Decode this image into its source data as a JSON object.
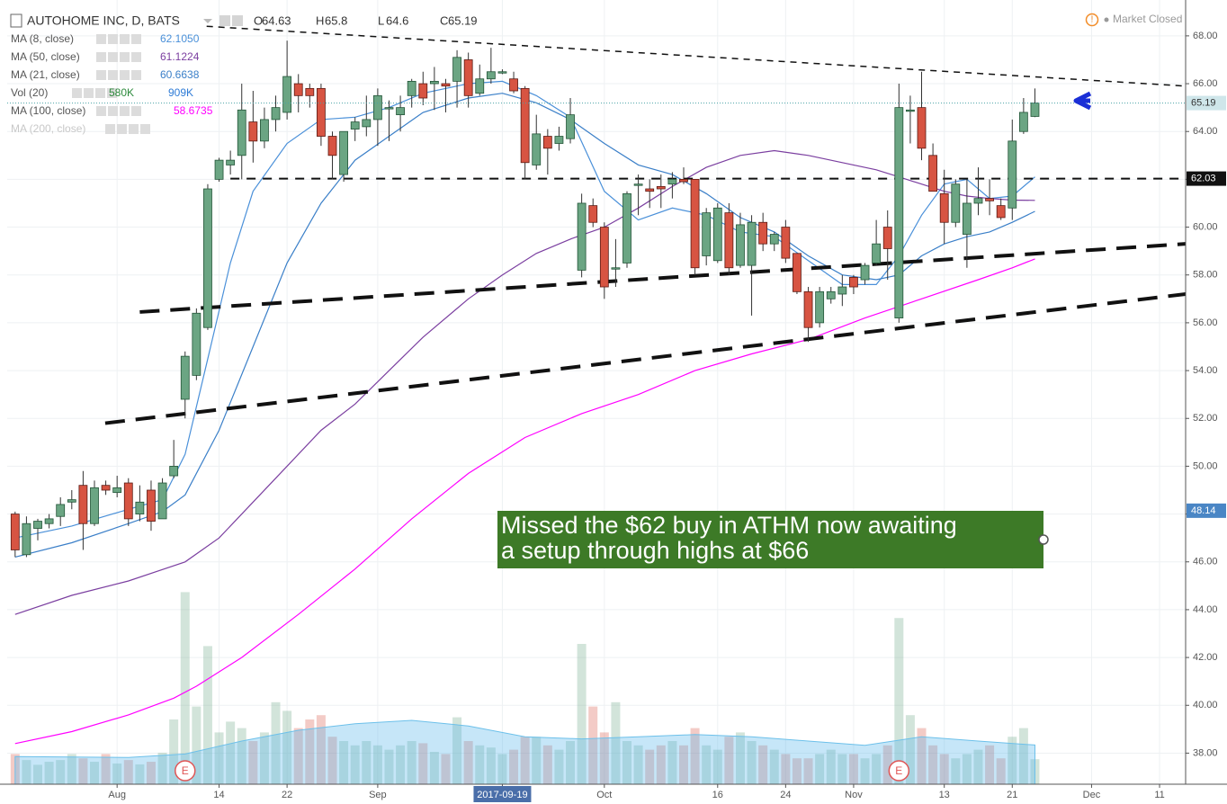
{
  "chart_data": {
    "type": "candlestick",
    "title": "AUTOHOME INC, D, BATS",
    "header_ohlc": [
      {
        "label": "O",
        "value": 64.63
      },
      {
        "label": "H",
        "value": 65.8
      },
      {
        "label": "L",
        "value": 64.6
      },
      {
        "label": "C",
        "value": 65.19
      }
    ],
    "status": "Market Closed",
    "xlim": [
      -0.7,
      103.3
    ],
    "ylim": [
      36.7,
      69.5
    ],
    "xticks": [
      {
        "value": 9,
        "label": "Aug"
      },
      {
        "value": 18,
        "label": "14"
      },
      {
        "value": 24,
        "label": "22"
      },
      {
        "value": 32,
        "label": "Sep"
      },
      {
        "value": 43,
        "label": "2017-09-19",
        "highlight": true
      },
      {
        "value": 52,
        "label": "Oct"
      },
      {
        "value": 62,
        "label": "16"
      },
      {
        "value": 68,
        "label": "24"
      },
      {
        "value": 74,
        "label": "Nov"
      },
      {
        "value": 82,
        "label": "13"
      },
      {
        "value": 88,
        "label": "21"
      },
      {
        "value": 95,
        "label": "Dec"
      },
      {
        "value": 101,
        "label": "11"
      }
    ],
    "yticks": [
      {
        "value": 38,
        "label": "38.00"
      },
      {
        "value": 40,
        "label": "40.00"
      },
      {
        "value": 42,
        "label": "42.00"
      },
      {
        "value": 44,
        "label": "44.00"
      },
      {
        "value": 46,
        "label": "46.00"
      },
      {
        "value": 48,
        "label": "48.00"
      },
      {
        "value": 50,
        "label": "50.00"
      },
      {
        "value": 52,
        "label": "52.00"
      },
      {
        "value": 54,
        "label": "54.00"
      },
      {
        "value": 56,
        "label": "56.00"
      },
      {
        "value": 58,
        "label": "58.00"
      },
      {
        "value": 60,
        "label": "60.00"
      },
      {
        "value": 62,
        "label": "62.00"
      },
      {
        "value": 64,
        "label": "64.00"
      },
      {
        "value": 66,
        "label": "66.00"
      },
      {
        "value": 68,
        "label": "68.00"
      }
    ],
    "grid": true,
    "up_color": "#6ba583",
    "down_color": "#d75442",
    "wick_color": "#333333",
    "open": [
      48.0,
      46.3,
      47.4,
      47.6,
      47.9,
      48.5,
      49.2,
      47.6,
      49.2,
      48.9,
      49.3,
      48.0,
      49.0,
      47.8,
      49.6,
      52.8,
      53.8,
      55.8,
      62.0,
      62.6,
      63.0,
      64.4,
      63.6,
      64.5,
      64.8,
      66.0,
      65.8,
      65.8,
      63.8,
      62.2,
      64.1,
      64.2,
      64.5,
      65.0,
      64.7,
      65.5,
      66.0,
      66.0,
      66.0,
      66.1,
      67.0,
      65.6,
      66.2,
      66.5,
      66.2,
      65.8,
      62.6,
      63.8,
      63.5,
      63.7,
      58.2,
      60.9,
      60.0,
      58.3,
      58.5,
      61.8,
      61.6,
      61.7,
      61.8,
      62.0,
      62.0,
      58.8,
      58.6,
      60.6,
      58.4,
      58.4,
      60.2,
      59.3,
      60.0,
      58.9,
      57.3,
      56.0,
      57.0,
      57.2,
      57.9,
      57.8,
      58.5,
      60.0,
      56.2,
      64.9,
      65.0,
      63.0,
      61.4,
      60.2,
      59.7,
      61.0,
      61.2,
      60.9,
      60.8,
      64.0,
      64.63
    ],
    "high": [
      48.1,
      47.9,
      47.8,
      48.0,
      48.7,
      49.0,
      49.8,
      49.4,
      49.4,
      49.6,
      49.5,
      49.2,
      49.4,
      49.5,
      51.1,
      54.8,
      56.6,
      61.8,
      62.9,
      63.2,
      66.0,
      65.7,
      65.0,
      65.5,
      67.8,
      66.4,
      66.0,
      66.0,
      64.0,
      64.0,
      64.6,
      65.5,
      65.8,
      65.3,
      65.5,
      66.2,
      66.5,
      66.7,
      66.2,
      67.4,
      67.3,
      66.8,
      67.5,
      66.6,
      66.5,
      65.9,
      64.7,
      64.1,
      64.2,
      65.4,
      61.4,
      61.2,
      60.2,
      59.5,
      61.5,
      62.2,
      62.0,
      62.2,
      62.3,
      62.5,
      62.0,
      60.8,
      61.0,
      61.0,
      60.6,
      60.5,
      60.6,
      59.8,
      60.3,
      58.9,
      57.5,
      57.5,
      57.5,
      58.0,
      58.0,
      58.5,
      60.3,
      60.7,
      66.0,
      65.5,
      66.5,
      63.5,
      62.4,
      62.0,
      62.0,
      62.5,
      62.0,
      61.2,
      64.5,
      65.4,
      65.8
    ],
    "low": [
      46.2,
      46.2,
      46.9,
      47.4,
      47.5,
      48.2,
      46.5,
      47.5,
      48.8,
      48.7,
      47.5,
      47.7,
      47.3,
      47.8,
      49.5,
      52.0,
      53.6,
      55.7,
      61.9,
      62.2,
      62.0,
      62.7,
      63.3,
      64.0,
      64.5,
      64.8,
      65.0,
      63.4,
      62.0,
      61.9,
      63.6,
      63.8,
      63.4,
      63.6,
      64.0,
      65.0,
      65.1,
      64.9,
      64.8,
      65.0,
      65.0,
      65.5,
      66.0,
      66.4,
      65.6,
      62.0,
      62.4,
      62.2,
      63.2,
      63.5,
      57.9,
      60.0,
      57.0,
      57.5,
      58.3,
      60.5,
      60.8,
      60.8,
      61.2,
      61.8,
      58.0,
      58.4,
      58.5,
      58.0,
      58.3,
      56.3,
      59.0,
      59.0,
      58.5,
      57.2,
      55.2,
      55.8,
      56.8,
      56.7,
      57.2,
      57.6,
      58.4,
      57.8,
      56.0,
      63.5,
      62.8,
      61.5,
      59.3,
      60.0,
      58.3,
      60.5,
      60.5,
      60.3,
      60.3,
      63.9,
      64.6
    ],
    "close": [
      46.5,
      47.6,
      47.7,
      47.8,
      48.4,
      48.6,
      47.6,
      49.1,
      49.0,
      49.1,
      47.8,
      48.5,
      47.7,
      49.3,
      50.0,
      54.6,
      56.4,
      61.6,
      62.8,
      62.8,
      64.9,
      63.6,
      64.5,
      65.0,
      66.3,
      65.5,
      65.5,
      63.8,
      63.0,
      64.0,
      64.4,
      64.5,
      65.5,
      65.0,
      65.0,
      66.1,
      65.4,
      66.1,
      65.9,
      67.1,
      65.5,
      66.2,
      66.5,
      66.5,
      65.7,
      62.7,
      63.9,
      63.3,
      63.8,
      64.7,
      61.0,
      60.2,
      57.5,
      58.3,
      61.4,
      61.8,
      61.5,
      61.6,
      62.0,
      61.9,
      58.3,
      60.6,
      60.8,
      58.3,
      60.1,
      60.2,
      59.3,
      59.7,
      58.7,
      57.3,
      55.8,
      57.3,
      57.3,
      57.5,
      57.5,
      58.4,
      59.3,
      59.1,
      65.0,
      64.9,
      63.3,
      61.5,
      60.2,
      61.8,
      61.0,
      61.2,
      61.1,
      60.4,
      63.6,
      64.8,
      65.19
    ],
    "volume": {
      "name": "Vol (20)",
      "values": [
        700,
        560,
        450,
        520,
        560,
        700,
        600,
        520,
        700,
        480,
        560,
        460,
        520,
        730,
        1500,
        4450,
        1800,
        3200,
        1200,
        1450,
        1300,
        1000,
        1200,
        1900,
        1700,
        1300,
        1500,
        1600,
        1100,
        1000,
        900,
        1000,
        900,
        800,
        900,
        1000,
        950,
        750,
        700,
        1550,
        1000,
        900,
        850,
        700,
        800,
        1100,
        1100,
        900,
        800,
        1000,
        3250,
        1800,
        1200,
        1900,
        1000,
        900,
        800,
        900,
        1000,
        900,
        1300,
        900,
        800,
        1100,
        1200,
        1000,
        900,
        800,
        700,
        600,
        600,
        700,
        800,
        700,
        700,
        600,
        700,
        900,
        3850,
        1600,
        1300,
        900,
        700,
        600,
        700,
        800,
        900,
        600,
        1100,
        1300,
        580
      ],
      "ma_x": [
        0,
        10,
        15,
        20,
        25,
        30,
        35,
        40,
        45,
        50,
        55,
        60,
        65,
        70,
        75,
        80,
        85,
        90
      ],
      "ma_values": [
        640,
        620,
        700,
        1000,
        1250,
        1400,
        1480,
        1350,
        1100,
        1050,
        1100,
        1150,
        1100,
        1000,
        900,
        1100,
        1000,
        909
      ],
      "legend_values": [
        580,
        909
      ],
      "legend_labels": [
        "580K",
        "909K"
      ],
      "legend_colors": [
        "#2c8a3c",
        "#2e7bd6"
      ]
    },
    "series": [
      {
        "name": "MA (8, close)",
        "color": "#4a90d9",
        "value": {
          "value": 62.105,
          "label": "62.1050"
        },
        "x": [
          0,
          5,
          10,
          13,
          15,
          17,
          19,
          21,
          24,
          27,
          30,
          33,
          36,
          40,
          43,
          46,
          49,
          52,
          55,
          58,
          61,
          64,
          67,
          70,
          73,
          76,
          78,
          80,
          82,
          84,
          86,
          88,
          90
        ],
        "values": [
          47.0,
          47.5,
          48.2,
          48.6,
          50.5,
          54.5,
          58.5,
          61.5,
          63.5,
          64.5,
          64.6,
          65.0,
          65.6,
          66.0,
          66.1,
          65.5,
          64.6,
          61.5,
          60.3,
          60.8,
          60.5,
          59.8,
          59.6,
          58.6,
          57.6,
          57.6,
          58.8,
          60.5,
          61.8,
          62.0,
          61.2,
          61.3,
          62.1
        ]
      },
      {
        "name": "MA (50, close)",
        "color": "#7b3fa0",
        "value": {
          "value": 61.1224,
          "label": "61.1224"
        },
        "x": [
          0,
          5,
          10,
          15,
          18,
          21,
          24,
          27,
          30,
          33,
          36,
          40,
          43,
          46,
          49,
          52,
          55,
          58,
          61,
          64,
          67,
          70,
          73,
          76,
          78,
          80,
          82,
          84,
          86,
          88,
          90
        ],
        "values": [
          43.8,
          44.6,
          45.2,
          46.0,
          47.0,
          48.5,
          50.0,
          51.5,
          52.6,
          54.0,
          55.4,
          57.0,
          58.0,
          58.9,
          59.5,
          60.0,
          60.8,
          61.7,
          62.5,
          63.0,
          63.2,
          63.0,
          62.7,
          62.4,
          62.1,
          61.8,
          61.5,
          61.3,
          61.2,
          61.13,
          61.12
        ]
      },
      {
        "name": "MA (21, close)",
        "color": "#3a7fc8",
        "value": {
          "value": 60.6638,
          "label": "60.6638"
        },
        "x": [
          0,
          5,
          10,
          13,
          15,
          18,
          21,
          24,
          27,
          30,
          33,
          36,
          40,
          43,
          46,
          49,
          52,
          55,
          58,
          61,
          64,
          67,
          70,
          73,
          76,
          78,
          80,
          82,
          84,
          86,
          88,
          90
        ],
        "values": [
          46.2,
          46.8,
          47.6,
          48.1,
          48.8,
          51.5,
          55.0,
          58.5,
          61.0,
          62.8,
          63.8,
          64.8,
          65.4,
          65.6,
          65.2,
          64.5,
          63.5,
          62.6,
          62.2,
          61.4,
          60.4,
          59.8,
          58.8,
          58.0,
          57.8,
          58.0,
          58.8,
          59.3,
          59.6,
          59.8,
          60.2,
          60.66
        ]
      },
      {
        "name": "MA (100, close)",
        "color": "#ff00ff",
        "value": {
          "value": 58.6735,
          "label": "58.6735"
        },
        "x": [
          0,
          5,
          10,
          14,
          16,
          20,
          25,
          30,
          35,
          40,
          45,
          50,
          55,
          60,
          65,
          70,
          75,
          80,
          85,
          88,
          90
        ],
        "values": [
          38.4,
          38.9,
          39.6,
          40.3,
          40.8,
          42.0,
          43.8,
          45.7,
          47.8,
          49.7,
          51.2,
          52.2,
          53.0,
          54.0,
          54.7,
          55.3,
          56.2,
          57.0,
          57.8,
          58.3,
          58.67
        ]
      },
      {
        "name": "MA (200, close)",
        "color": "#c8c8c8",
        "hidden": true
      }
    ],
    "legend_order": [
      0,
      1,
      2,
      "volume",
      3,
      4
    ],
    "trendlines": [
      {
        "x": [
          16.9,
          103.3
        ],
        "values": [
          68.4,
          65.9
        ],
        "style": "thin"
      },
      {
        "x": [
          19,
          103.3
        ],
        "values": [
          62.03,
          62.03
        ],
        "style": "medium"
      },
      {
        "x": [
          11.0,
          103.3
        ],
        "values": [
          56.45,
          59.3
        ],
        "style": "thick"
      },
      {
        "x": [
          7.95,
          103.3
        ],
        "values": [
          51.8,
          57.2
        ],
        "style": "thick"
      }
    ],
    "price_markers": [
      {
        "value": 65.19,
        "color": "#cfe6ea",
        "text_color": "#333333",
        "line": true
      },
      {
        "value": 62.03,
        "color": "#111111",
        "text_color": "#ffffff"
      },
      {
        "value": 48.14,
        "color": "#4a86c5",
        "text_color": "#ffffff"
      }
    ],
    "earnings": [
      {
        "x": 15,
        "label": "E"
      },
      {
        "x": 78,
        "label": "E"
      }
    ],
    "annotation": {
      "lines": [
        "Missed the $62 buy in ATHM now awaiting",
        "a setup through highs at $66"
      ],
      "color": "#3d7a27"
    }
  }
}
